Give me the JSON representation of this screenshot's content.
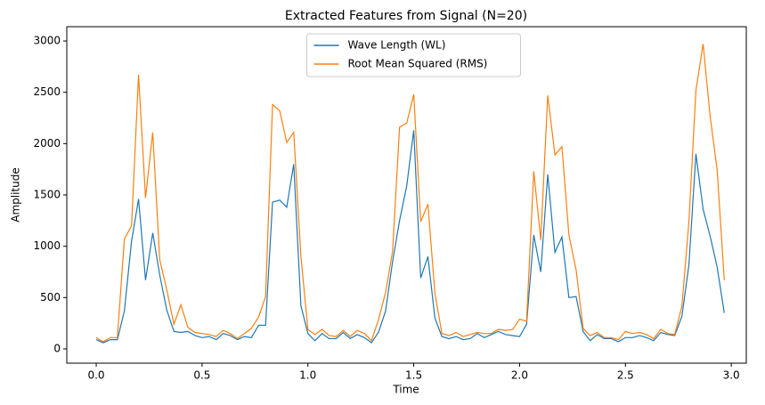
{
  "chart_data": {
    "type": "line",
    "title": "Extracted Features from Signal (N=20)",
    "xlabel": "Time",
    "ylabel": "Amplitude",
    "x": [
      0,
      0.033,
      0.067,
      0.1,
      0.133,
      0.167,
      0.2,
      0.233,
      0.267,
      0.3,
      0.333,
      0.367,
      0.4,
      0.433,
      0.467,
      0.5,
      0.533,
      0.567,
      0.6,
      0.633,
      0.667,
      0.7,
      0.733,
      0.767,
      0.8,
      0.833,
      0.867,
      0.9,
      0.933,
      0.967,
      1,
      1.033,
      1.067,
      1.1,
      1.133,
      1.167,
      1.2,
      1.233,
      1.267,
      1.3,
      1.333,
      1.367,
      1.4,
      1.433,
      1.467,
      1.5,
      1.533,
      1.567,
      1.6,
      1.633,
      1.667,
      1.7,
      1.733,
      1.767,
      1.8,
      1.833,
      1.867,
      1.9,
      1.933,
      1.967,
      2,
      2.033,
      2.067,
      2.1,
      2.133,
      2.167,
      2.2,
      2.233,
      2.267,
      2.3,
      2.333,
      2.367,
      2.4,
      2.433,
      2.467,
      2.5,
      2.533,
      2.567,
      2.6,
      2.633,
      2.667,
      2.7,
      2.733,
      2.767,
      2.8,
      2.833,
      2.867,
      2.9,
      2.933,
      2.967
    ],
    "series": [
      {
        "name": "Wave Length (WL)",
        "color": "#1f77b4",
        "values": [
          90,
          60,
          90,
          90,
          370,
          1050,
          1460,
          670,
          1130,
          720,
          380,
          170,
          160,
          170,
          130,
          110,
          120,
          90,
          150,
          130,
          90,
          120,
          110,
          230,
          230,
          1430,
          1450,
          1380,
          1800,
          420,
          150,
          80,
          150,
          100,
          100,
          160,
          100,
          140,
          110,
          60,
          160,
          370,
          850,
          1250,
          1590,
          2130,
          690,
          900,
          300,
          120,
          100,
          120,
          90,
          100,
          150,
          110,
          140,
          170,
          140,
          130,
          120,
          240,
          1110,
          750,
          1700,
          940,
          1090,
          500,
          510,
          170,
          80,
          140,
          100,
          100,
          70,
          110,
          110,
          130,
          110,
          80,
          160,
          140,
          130,
          320,
          820,
          1900,
          1360,
          1100,
          800,
          350
        ]
      },
      {
        "name": "Root Mean Squared (RMS)",
        "color": "#ff7f0e",
        "values": [
          110,
          70,
          110,
          110,
          1070,
          1200,
          2670,
          1470,
          2110,
          870,
          580,
          240,
          430,
          210,
          160,
          150,
          140,
          120,
          180,
          150,
          100,
          150,
          200,
          310,
          510,
          2380,
          2320,
          2010,
          2110,
          900,
          190,
          140,
          190,
          130,
          120,
          180,
          120,
          180,
          150,
          80,
          280,
          550,
          950,
          2160,
          2200,
          2480,
          1240,
          1410,
          540,
          150,
          130,
          160,
          120,
          140,
          160,
          150,
          150,
          190,
          180,
          190,
          290,
          270,
          1730,
          1060,
          2470,
          1890,
          1970,
          1110,
          770,
          200,
          130,
          160,
          110,
          110,
          90,
          170,
          150,
          160,
          140,
          100,
          190,
          150,
          140,
          420,
          1240,
          2520,
          2970,
          2270,
          1750,
          670
        ]
      }
    ],
    "xlim": [
      -0.139,
      3.071
    ],
    "ylim": [
      -139,
      3139
    ],
    "xticks": [
      {
        "value": 0,
        "label": "0.0"
      },
      0.5,
      {
        "value": 1,
        "label": "1.0"
      },
      1.5,
      {
        "value": 2,
        "label": "2.0"
      },
      2.5,
      {
        "value": 3,
        "label": "3.0"
      }
    ],
    "yticks": [
      0,
      500,
      1000,
      1500,
      2000,
      2500,
      3000
    ],
    "grid": false,
    "legend": "upper center"
  }
}
